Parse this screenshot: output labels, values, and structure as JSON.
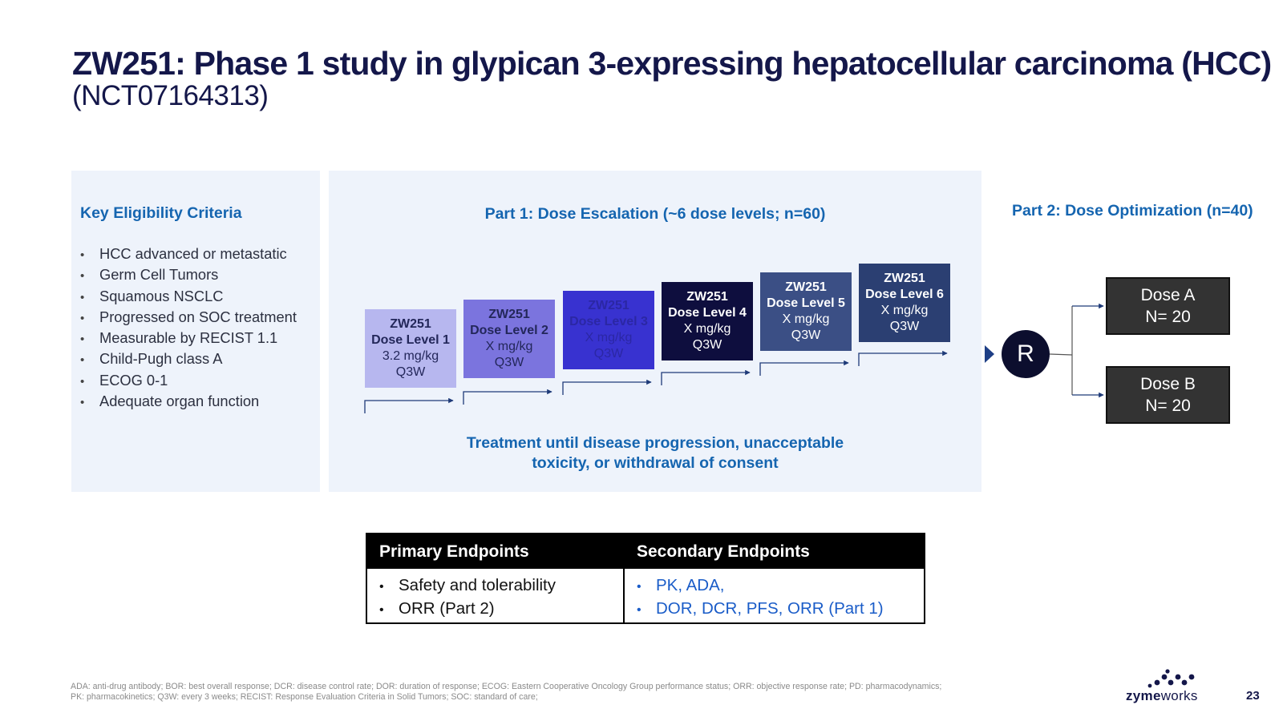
{
  "header": {
    "title": "ZW251: Phase 1 study in glypican 3-expressing hepatocellular carcinoma (HCC)",
    "subtitle": "(NCT07164313)"
  },
  "eligibility": {
    "heading": "Key Eligibility Criteria",
    "items": [
      "HCC advanced or metastatic",
      "Germ Cell Tumors",
      "Squamous NSCLC",
      "Progressed on SOC treatment",
      "Measurable by RECIST 1.1",
      "Child-Pugh class A",
      "ECOG 0-1",
      "Adequate organ function"
    ]
  },
  "escalation": {
    "heading": "Part 1: Dose Escalation (~6 dose levels; n=60)",
    "doses": [
      {
        "name": "ZW251",
        "level": "Dose Level 1",
        "amount": "3.2 mg/kg",
        "schedule": "Q3W",
        "bg": "#b7b7ef",
        "fg": "#23275a"
      },
      {
        "name": "ZW251",
        "level": "Dose Level 2",
        "amount": "X mg/kg",
        "schedule": "Q3W",
        "bg": "#7b74de",
        "fg": "#23275a"
      },
      {
        "name": "ZW251",
        "level": "Dose Level 3",
        "amount": "X mg/kg",
        "schedule": "Q3W",
        "bg": "#3832d0",
        "fg": "#2b27a4"
      },
      {
        "name": "ZW251",
        "level": "Dose Level 4",
        "amount": "X mg/kg",
        "schedule": "Q3W",
        "bg": "#0e0e3e",
        "fg": "#ffffff"
      },
      {
        "name": "ZW251",
        "level": "Dose Level 5",
        "amount": "X mg/kg",
        "schedule": "Q3W",
        "bg": "#3b4f85",
        "fg": "#ffffff"
      },
      {
        "name": "ZW251",
        "level": "Dose Level 6",
        "amount": "X mg/kg",
        "schedule": "Q3W",
        "bg": "#2b3f72",
        "fg": "#ffffff"
      }
    ],
    "treatment_note_line1": "Treatment until disease progression, unacceptable",
    "treatment_note_line2": "toxicity, or withdrawal of consent"
  },
  "optimization": {
    "heading": "Part 2: Dose Optimization (n=40)",
    "randomize_label": "R",
    "arms": [
      {
        "name": "Dose A",
        "n": "N= 20"
      },
      {
        "name": "Dose B",
        "n": "N= 20"
      }
    ]
  },
  "endpoints": {
    "primary_heading": "Primary Endpoints",
    "secondary_heading": "Secondary Endpoints",
    "primary": [
      "Safety and tolerability",
      "ORR (Part 2)"
    ],
    "secondary": [
      "PK, ADA,",
      "DOR, DCR, PFS, ORR (Part 1)"
    ]
  },
  "footnote": {
    "line1": "ADA: anti-drug antibody; BOR: best overall response; DCR: disease control rate; DOR: duration of response; ECOG: Eastern Cooperative Oncology Group performance status; ORR: objective response rate; PD: pharmacodynamics;",
    "line2": "PK: pharmacokinetics; Q3W: every 3 weeks;  RECIST: Response Evaluation Criteria in Solid Tumors; SOC: standard of care;"
  },
  "logo": {
    "part1": "zyme",
    "part2": "works"
  },
  "page_number": "23",
  "colors": {
    "accent_blue": "#1565b0",
    "navy": "#14174a"
  }
}
